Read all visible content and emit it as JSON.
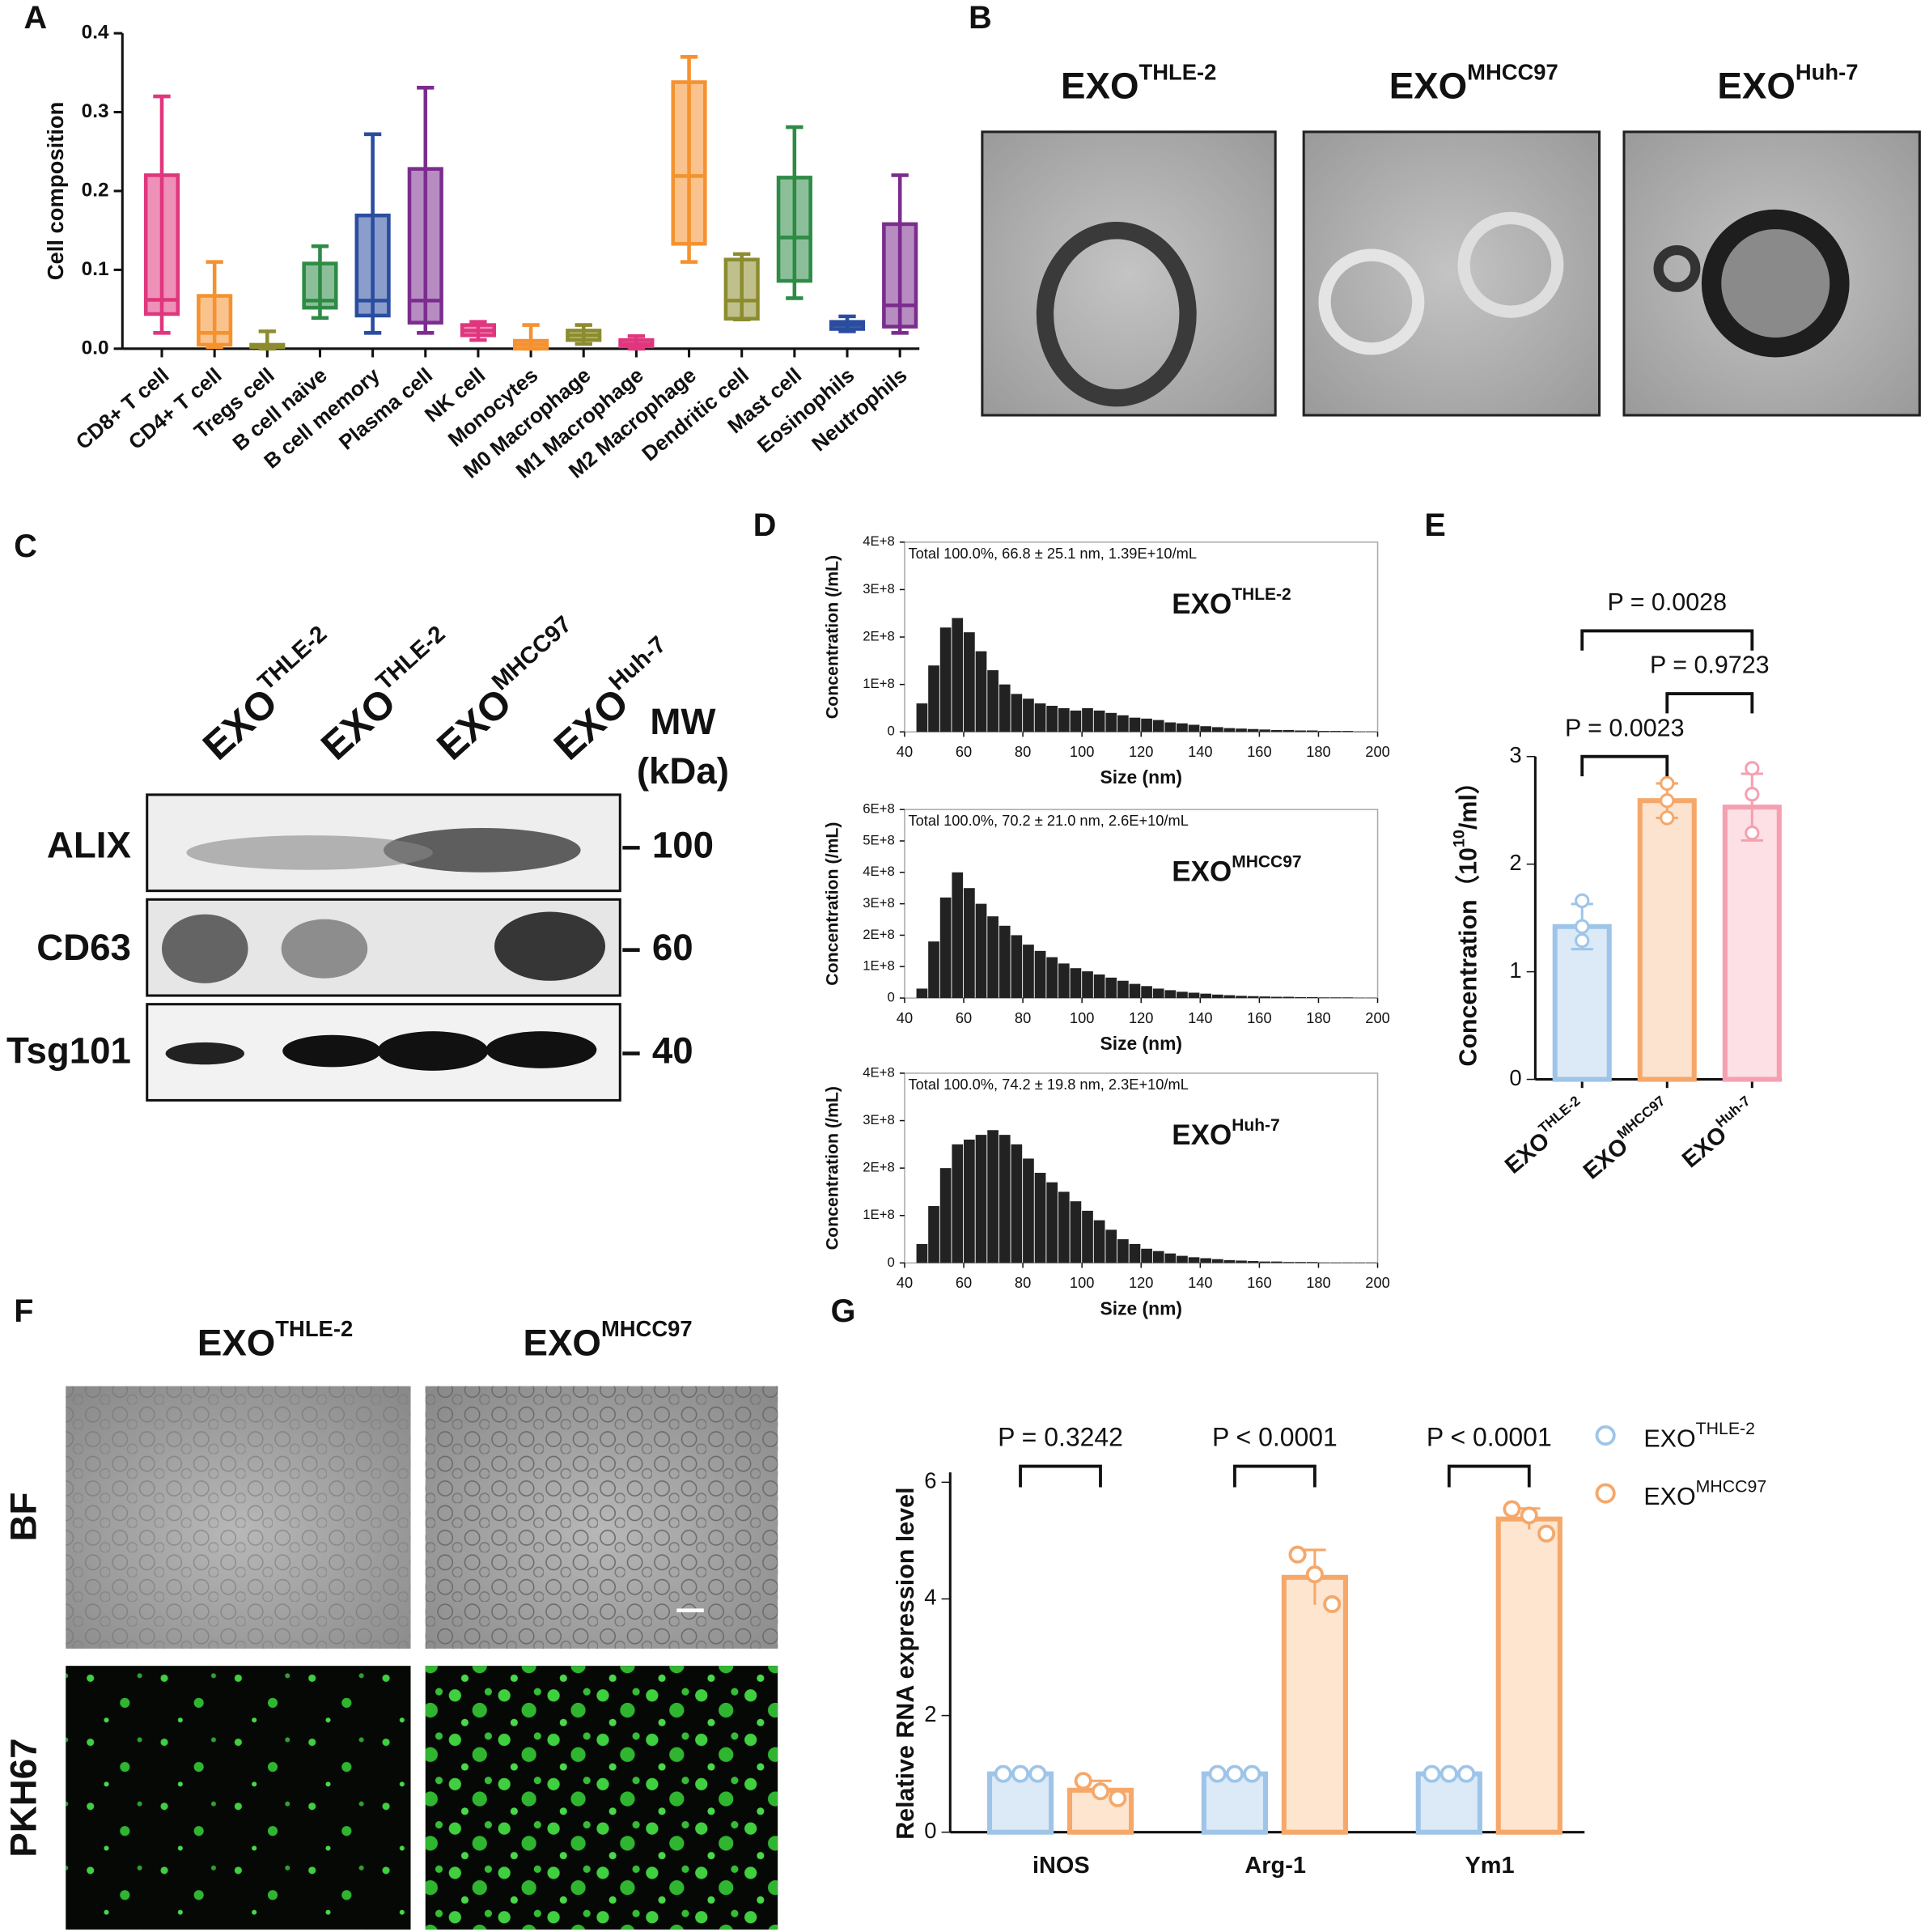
{
  "chart_data": [
    {
      "type": "box",
      "panel": "A",
      "ylabel": "Cell composition",
      "categories": [
        "CD8+ T cell",
        "CD4+ T cell",
        "Tregs cell",
        "B cell naive",
        "B cell memory",
        "Plasma cell",
        "NK cell",
        "Monocytes",
        "M0 Macrophage",
        "M1 Macrophage",
        "M2 Macrophage",
        "Dendritic cell",
        "Mast cell",
        "Eosinophils",
        "Neutrophils"
      ],
      "colors": [
        "#e0367e",
        "#f5922f",
        "#8c8c2f",
        "#2e8b46",
        "#2a4da0",
        "#7b2d8e",
        "#e0367e",
        "#f5922f",
        "#8c8c2f",
        "#e0367e",
        "#f5922f",
        "#8c8c2f",
        "#2e8b46",
        "#2a4da0",
        "#7b2d8e"
      ],
      "boxes": [
        {
          "min": 0.02,
          "q1": 0.044,
          "median": 0.062,
          "q3": 0.22,
          "max": 0.32
        },
        {
          "min": 0.002,
          "q1": 0.005,
          "median": 0.02,
          "q3": 0.067,
          "max": 0.11
        },
        {
          "min": 0,
          "q1": 0.002,
          "median": 0.004,
          "q3": 0.005,
          "max": 0.022
        },
        {
          "min": 0.039,
          "q1": 0.052,
          "median": 0.061,
          "q3": 0.108,
          "max": 0.13
        },
        {
          "min": 0.02,
          "q1": 0.042,
          "median": 0.061,
          "q3": 0.169,
          "max": 0.272
        },
        {
          "min": 0.02,
          "q1": 0.033,
          "median": 0.061,
          "q3": 0.228,
          "max": 0.331
        },
        {
          "min": 0.011,
          "q1": 0.017,
          "median": 0.023,
          "q3": 0.03,
          "max": 0.034
        },
        {
          "min": 0,
          "q1": 0,
          "median": 0.005,
          "q3": 0.01,
          "max": 0.03
        },
        {
          "min": 0.006,
          "q1": 0.011,
          "median": 0.017,
          "q3": 0.023,
          "max": 0.03
        },
        {
          "min": 0,
          "q1": 0.003,
          "median": 0.006,
          "q3": 0.011,
          "max": 0.016
        },
        {
          "min": 0.11,
          "q1": 0.133,
          "median": 0.219,
          "q3": 0.338,
          "max": 0.37
        },
        {
          "min": 0.037,
          "q1": 0.038,
          "median": 0.061,
          "q3": 0.113,
          "max": 0.12
        },
        {
          "min": 0.064,
          "q1": 0.086,
          "median": 0.141,
          "q3": 0.217,
          "max": 0.281
        },
        {
          "min": 0.022,
          "q1": 0.025,
          "median": 0.03,
          "q3": 0.034,
          "max": 0.041
        },
        {
          "min": 0.02,
          "q1": 0.028,
          "median": 0.055,
          "q3": 0.158,
          "max": 0.22
        }
      ],
      "ylim": [
        0,
        0.4
      ],
      "yticks": [
        {
          "value": 0,
          "label": "0.0"
        },
        0.1,
        0.2,
        0.3,
        0.4
      ]
    },
    {
      "type": "histogram",
      "panel": "D",
      "annotation": "Total  100.0%,  66.8 ± 25.1 nm,  1.39E+10/mL",
      "prefix": "EXO",
      "sample": "THLE-2",
      "xlabel": "Size (nm)",
      "ylabel": "Concentration (/mL)",
      "color": "#222",
      "bins": [
        40,
        44,
        48,
        52,
        56,
        60,
        64,
        68,
        72,
        76,
        80,
        84,
        88,
        92,
        96,
        100,
        104,
        108,
        112,
        116,
        120,
        124,
        128,
        132,
        136,
        140,
        144,
        148,
        152,
        156,
        160,
        164,
        168,
        172,
        176,
        180,
        184,
        188,
        192,
        196,
        200
      ],
      "values": [
        0,
        60000000.0,
        140000000.0,
        220000000.0,
        240000000.0,
        210000000.0,
        170000000.0,
        130000000.0,
        100000000.0,
        80000000.0,
        70000000.0,
        60000000.0,
        55000000.0,
        50000000.0,
        45000000.0,
        50000000.0,
        45000000.0,
        40000000.0,
        35000000.0,
        30000000.0,
        28000000.0,
        25000000.0,
        20000000.0,
        18000000.0,
        15000000.0,
        12000000.0,
        10000000.0,
        8000000.0,
        7000000.0,
        6000000.0,
        5000000.0,
        4000000.0,
        4000000.0,
        3000000.0,
        3000000.0,
        2000000.0,
        2000000.0,
        2000000.0,
        1000000.0,
        1000000.0
      ],
      "xlim": [
        40,
        200
      ],
      "xticks": [
        40,
        60,
        80,
        100,
        120,
        140,
        160,
        180,
        200
      ],
      "ylim": [
        0,
        400000000.0
      ],
      "yticks": [
        0,
        {
          "value": 100000000.0,
          "label": "1E+8"
        },
        {
          "value": 200000000.0,
          "label": "2E+8"
        },
        {
          "value": 300000000.0,
          "label": "3E+8"
        },
        {
          "value": 400000000.0,
          "label": "4E+8"
        }
      ]
    },
    {
      "type": "histogram",
      "annotation": "Total  100.0%,  70.2 ± 21.0 nm,  2.6E+10/mL",
      "prefix": "EXO",
      "sample": "MHCC97",
      "xlabel": "Size (nm)",
      "ylabel": "Concentration (/mL)",
      "color": "#222",
      "bins": [
        40,
        44,
        48,
        52,
        56,
        60,
        64,
        68,
        72,
        76,
        80,
        84,
        88,
        92,
        96,
        100,
        104,
        108,
        112,
        116,
        120,
        124,
        128,
        132,
        136,
        140,
        144,
        148,
        152,
        156,
        160,
        164,
        168,
        172,
        176,
        180,
        184,
        188,
        192,
        196,
        200
      ],
      "values": [
        0,
        30000000.0,
        180000000.0,
        320000000.0,
        400000000.0,
        350000000.0,
        300000000.0,
        260000000.0,
        230000000.0,
        200000000.0,
        170000000.0,
        150000000.0,
        130000000.0,
        110000000.0,
        95000000.0,
        85000000.0,
        75000000.0,
        65000000.0,
        55000000.0,
        45000000.0,
        38000000.0,
        30000000.0,
        25000000.0,
        20000000.0,
        17000000.0,
        14000000.0,
        11000000.0,
        9000000.0,
        7000000.0,
        6000000.0,
        5000000.0,
        4000000.0,
        4000000.0,
        3000000.0,
        3000000.0,
        2000000.0,
        2000000.0,
        2000000.0,
        1000000.0,
        1000000.0
      ],
      "xlim": [
        40,
        200
      ],
      "xticks": [
        40,
        60,
        80,
        100,
        120,
        140,
        160,
        180,
        200
      ],
      "ylim": [
        0,
        600000000.0
      ],
      "yticks": [
        0,
        {
          "value": 100000000.0,
          "label": "1E+8"
        },
        {
          "value": 200000000.0,
          "label": "2E+8"
        },
        {
          "value": 300000000.0,
          "label": "3E+8"
        },
        {
          "value": 400000000.0,
          "label": "4E+8"
        },
        {
          "value": 500000000.0,
          "label": "5E+8"
        },
        {
          "value": 600000000.0,
          "label": "6E+8"
        }
      ]
    },
    {
      "type": "histogram",
      "annotation": "Total  100.0%,  74.2 ± 19.8 nm,  2.3E+10/mL",
      "prefix": "EXO",
      "sample": "Huh-7",
      "xlabel": "Size (nm)",
      "ylabel": "Concentration (/mL)",
      "color": "#222",
      "bins": [
        40,
        44,
        48,
        52,
        56,
        60,
        64,
        68,
        72,
        76,
        80,
        84,
        88,
        92,
        96,
        100,
        104,
        108,
        112,
        116,
        120,
        124,
        128,
        132,
        136,
        140,
        144,
        148,
        152,
        156,
        160,
        164,
        168,
        172,
        176,
        180,
        184,
        188,
        192,
        196,
        200
      ],
      "values": [
        0,
        40000000.0,
        120000000.0,
        200000000.0,
        250000000.0,
        260000000.0,
        270000000.0,
        280000000.0,
        270000000.0,
        250000000.0,
        220000000.0,
        190000000.0,
        170000000.0,
        150000000.0,
        130000000.0,
        110000000.0,
        90000000.0,
        70000000.0,
        50000000.0,
        40000000.0,
        30000000.0,
        25000000.0,
        20000000.0,
        15000000.0,
        12000000.0,
        10000000.0,
        8000000.0,
        6000000.0,
        5000000.0,
        4000000.0,
        3000000.0,
        3000000.0,
        2000000.0,
        2000000.0,
        2000000.0,
        1000000.0,
        1000000.0,
        1000000.0,
        1000000.0,
        1000000.0
      ],
      "xlim": [
        40,
        200
      ],
      "xticks": [
        40,
        60,
        80,
        100,
        120,
        140,
        160,
        180,
        200
      ],
      "ylim": [
        0,
        400000000.0
      ],
      "yticks": [
        0,
        {
          "value": 100000000.0,
          "label": "1E+8"
        },
        {
          "value": 200000000.0,
          "label": "2E+8"
        },
        {
          "value": 300000000.0,
          "label": "3E+8"
        },
        {
          "value": 400000000.0,
          "label": "4E+8"
        }
      ]
    },
    {
      "type": "bar",
      "panel": "E",
      "prefix": "EXO",
      "categories": [
        "THLE-2",
        "MHCC97",
        "Huh-7"
      ],
      "ylabel": {
        "text": "Concentration（10",
        "sup": "10",
        "after": "/ml）"
      },
      "values": [
        1.42,
        2.59,
        2.53
      ],
      "errors": [
        0.21,
        0.16,
        0.31
      ],
      "points": [
        [
          1.66,
          1.29,
          1.42
        ],
        [
          2.75,
          2.59,
          2.43
        ],
        [
          2.89,
          2.65,
          2.29
        ]
      ],
      "colors": [
        "#9ec5e8",
        "#f5a86a",
        "#f5a0b0"
      ],
      "fills": [
        "#dceaf7",
        "#fbe3cf",
        "#fde0e5"
      ],
      "comparisons": [
        {
          "pair": [
            0,
            1
          ],
          "label": "P = 0.0023"
        },
        {
          "pair": [
            1,
            2
          ],
          "label": "P = 0.9723"
        },
        {
          "pair": [
            0,
            2
          ],
          "label": "P = 0.0028"
        }
      ],
      "ylim": [
        0,
        3
      ],
      "yticks": [
        0,
        1,
        2,
        3
      ]
    },
    {
      "type": "grouped_bar",
      "panel": "G",
      "prefix": "EXO",
      "categories": [
        "iNOS",
        "Arg-1",
        "Ym1"
      ],
      "ylabel": "Relative RNA expression level",
      "legend": "top-right",
      "series": [
        {
          "name": "THLE-2",
          "color": "#9ec5e8",
          "fill": "#dceaf7",
          "values": [
            1,
            1,
            1
          ],
          "errors": [
            0,
            0,
            0
          ],
          "points": [
            [
              1,
              1,
              1
            ],
            [
              1,
              1,
              1
            ],
            [
              1,
              1,
              1
            ]
          ]
        },
        {
          "name": "MHCC97",
          "color": "#f5a86a",
          "fill": "#fde5d0",
          "values": [
            0.72,
            4.37,
            5.37
          ],
          "errors": [
            0.16,
            0.47,
            0.18
          ],
          "points": [
            [
              0.88,
              0.7,
              0.58
            ],
            [
              4.76,
              4.42,
              3.91
            ],
            [
              5.54,
              5.43,
              5.12
            ]
          ]
        }
      ],
      "comparisons": [
        {
          "group": 0,
          "label": "P = 0.3242"
        },
        {
          "group": 1,
          "label": "P < 0.0001"
        },
        {
          "group": 2,
          "label": "P < 0.0001"
        }
      ],
      "ylim": [
        0,
        6
      ],
      "yticks": [
        0,
        2,
        4,
        6
      ]
    }
  ],
  "panel_b": {
    "label": "B",
    "prefix": "EXO",
    "images": [
      "THLE-2",
      "MHCC97",
      "Huh-7"
    ]
  },
  "panel_c": {
    "label": "C",
    "prefix": "EXO",
    "lanes": [
      "THLE-2",
      "THLE-2",
      "MHCC97",
      "Huh-7"
    ],
    "mw_title": [
      "MW",
      "(kDa)"
    ],
    "rows": [
      {
        "protein": "ALIX",
        "mw": 100
      },
      {
        "protein": "CD63",
        "mw": 60
      },
      {
        "protein": "Tsg101",
        "mw": 40
      }
    ]
  },
  "panel_f": {
    "label": "F",
    "prefix": "EXO",
    "columns": [
      "THLE-2",
      "MHCC97"
    ],
    "rows": [
      "BF",
      "PKH67"
    ]
  }
}
